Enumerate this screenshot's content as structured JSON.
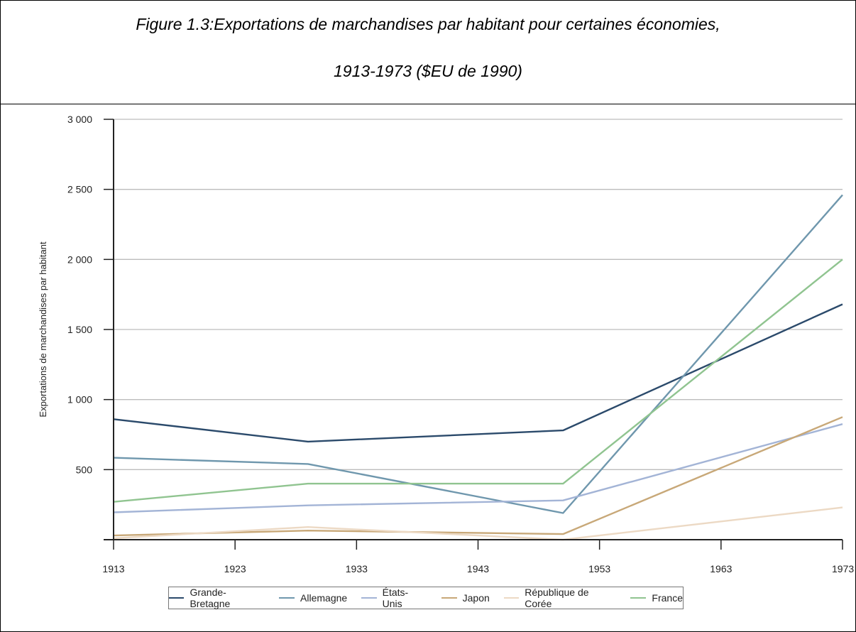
{
  "figure": {
    "title_line1": "Figure 1.3:Exportations de marchandises par habitant pour certaines économies,",
    "title_line2": "1913-1973  ($EU de 1990)"
  },
  "chart_data": {
    "type": "line",
    "title": "Figure 1.3:Exportations de marchandises par habitant pour certaines économies, 1913-1973  ($EU de 1990)",
    "xlabel": "",
    "ylabel": "Exportations de marchandises par habitant",
    "xlim": [
      1913,
      1973
    ],
    "ylim": [
      0,
      3000
    ],
    "x_ticks": [
      1913,
      1923,
      1933,
      1943,
      1953,
      1963,
      1973
    ],
    "y_ticks": [
      {
        "value": 500,
        "label": "500"
      },
      {
        "value": 1000,
        "label": "1 000"
      },
      {
        "value": 1500,
        "label": "1 500"
      },
      {
        "value": 2000,
        "label": "2 000"
      },
      {
        "value": 2500,
        "label": "2 500"
      },
      {
        "value": 3000,
        "label": "3 000"
      }
    ],
    "grid": true,
    "legend_position": "bottom",
    "series": [
      {
        "name": "Grande-Bretagne",
        "color": "#2b4a6b",
        "x": [
          1913,
          1929,
          1950,
          1973
        ],
        "values": [
          860,
          700,
          780,
          1680
        ]
      },
      {
        "name": "Allemagne",
        "color": "#6f97ad",
        "x": [
          1913,
          1929,
          1950,
          1973
        ],
        "values": [
          585,
          540,
          190,
          2460
        ]
      },
      {
        "name": "États-Unis",
        "color": "#a3b4d6",
        "x": [
          1913,
          1929,
          1950,
          1973
        ],
        "values": [
          195,
          245,
          280,
          825
        ]
      },
      {
        "name": "Japon",
        "color": "#c8a878",
        "x": [
          1913,
          1929,
          1950,
          1973
        ],
        "values": [
          30,
          65,
          40,
          875
        ]
      },
      {
        "name": "République de Corée",
        "color": "#ecd9c4",
        "x": [
          1913,
          1929,
          1950,
          1973
        ],
        "values": [
          10,
          90,
          0,
          230
        ]
      },
      {
        "name": "France",
        "color": "#90c490",
        "x": [
          1913,
          1929,
          1950,
          1973
        ],
        "values": [
          270,
          400,
          400,
          2000
        ]
      }
    ]
  }
}
